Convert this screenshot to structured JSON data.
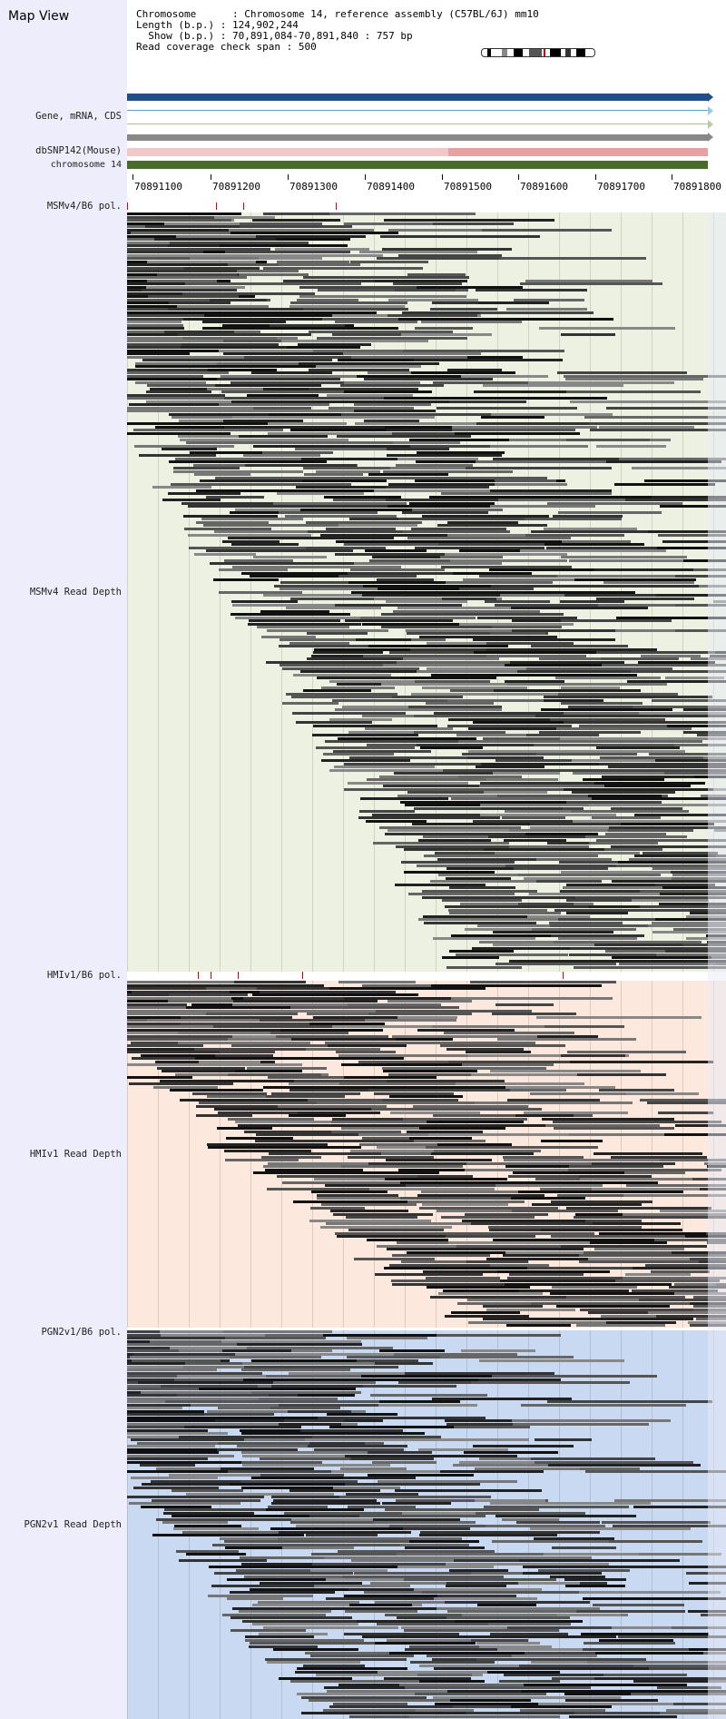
{
  "window": {
    "title": "Map View"
  },
  "info": {
    "chromosome_label": "Chromosome",
    "chromosome_value": "Chromosome 14, reference assembly (C57BL/6J) mm10",
    "length_label": "Length (b.p.)",
    "length_value": "124,902,244",
    "show_label": "Show (b.p.)",
    "show_value": "70,891,084-70,891,840 : 757 bp",
    "coverage_label": "Read coverage check span",
    "coverage_value": "500"
  },
  "tracks": {
    "gene": "Gene, mRNA, CDS",
    "dbsnp": "dbSNP142(Mouse)",
    "chromosome": "chromosome 14"
  },
  "axis": {
    "ticks": [
      "70891100",
      "70891200",
      "70891300",
      "70891400",
      "70891500",
      "70891600",
      "70891700",
      "70891800"
    ]
  },
  "panels": [
    {
      "pol_label": "MSMv4/B6 pol.",
      "depth_label": "MSMv4 Read Depth",
      "bg": "#edf1e2"
    },
    {
      "pol_label": "HMIv1/B6 pol.",
      "depth_label": "HMIv1 Read Depth",
      "bg": "#fce8dc"
    },
    {
      "pol_label": "PGN2v1/B6 pol.",
      "depth_label": "PGN2v1 Read Depth",
      "bg": "#c9d9f1"
    }
  ],
  "colors": {
    "gene_blue": "#1f4e8a",
    "dbsnp": "#e8a0a0",
    "chromosome": "#4a6a2a",
    "snp_mark": "#dd0000"
  }
}
